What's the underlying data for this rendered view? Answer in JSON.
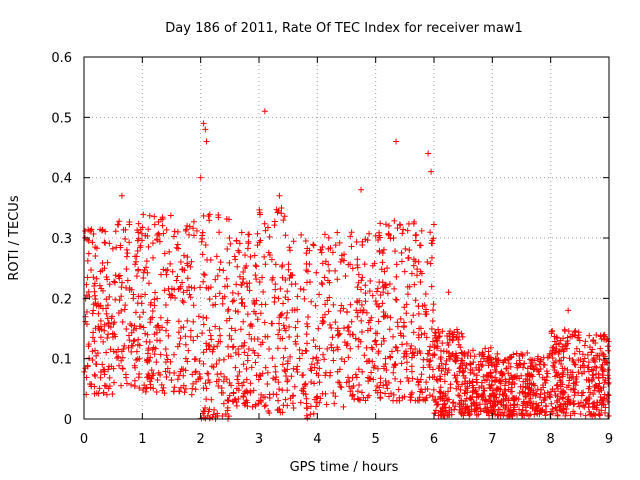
{
  "chart_data": {
    "type": "scatter",
    "title": "Day 186 of 2011, Rate Of TEC Index for receiver maw1",
    "xlabel": "GPS time / hours",
    "ylabel": "ROTI / TECUs",
    "xlim": [
      0,
      9
    ],
    "ylim": [
      0,
      0.6
    ],
    "xticks": [
      "0",
      "1",
      "2",
      "3",
      "4",
      "5",
      "6",
      "7",
      "8",
      "9"
    ],
    "yticks": [
      "0",
      "0.1",
      "0.2",
      "0.3",
      "0.4",
      "0.5",
      "0.6"
    ],
    "grid": true,
    "marker": "+",
    "color": "#ff0000",
    "notable_points": [
      {
        "x": 2.05,
        "y": 0.49
      },
      {
        "x": 2.08,
        "y": 0.48
      },
      {
        "x": 2.1,
        "y": 0.46
      },
      {
        "x": 3.1,
        "y": 0.51
      },
      {
        "x": 5.35,
        "y": 0.46
      },
      {
        "x": 5.9,
        "y": 0.44
      },
      {
        "x": 5.95,
        "y": 0.41
      },
      {
        "x": 2.0,
        "y": 0.4
      },
      {
        "x": 0.65,
        "y": 0.37
      },
      {
        "x": 3.35,
        "y": 0.37
      },
      {
        "x": 4.75,
        "y": 0.38
      },
      {
        "x": 6.25,
        "y": 0.21
      },
      {
        "x": 8.3,
        "y": 0.18
      }
    ],
    "density_segments": [
      {
        "x0": 0.0,
        "x1": 0.5,
        "ymin": 0.04,
        "ymax": 0.32,
        "n": 140
      },
      {
        "x0": 0.5,
        "x1": 1.0,
        "ymin": 0.05,
        "ymax": 0.33,
        "n": 120
      },
      {
        "x0": 1.0,
        "x1": 1.5,
        "ymin": 0.04,
        "ymax": 0.34,
        "n": 130
      },
      {
        "x0": 1.5,
        "x1": 2.0,
        "ymin": 0.04,
        "ymax": 0.33,
        "n": 100
      },
      {
        "x0": 2.0,
        "x1": 2.5,
        "ymin": 0.0,
        "ymax": 0.34,
        "n": 130
      },
      {
        "x0": 2.5,
        "x1": 3.0,
        "ymin": 0.02,
        "ymax": 0.31,
        "n": 130
      },
      {
        "x0": 3.0,
        "x1": 3.5,
        "ymin": 0.01,
        "ymax": 0.35,
        "n": 120
      },
      {
        "x0": 3.5,
        "x1": 4.0,
        "ymin": 0.0,
        "ymax": 0.31,
        "n": 100
      },
      {
        "x0": 4.0,
        "x1": 4.5,
        "ymin": 0.02,
        "ymax": 0.31,
        "n": 90
      },
      {
        "x0": 4.5,
        "x1": 5.0,
        "ymin": 0.03,
        "ymax": 0.31,
        "n": 110
      },
      {
        "x0": 5.0,
        "x1": 5.5,
        "ymin": 0.03,
        "ymax": 0.33,
        "n": 130
      },
      {
        "x0": 5.5,
        "x1": 6.0,
        "ymin": 0.03,
        "ymax": 0.33,
        "n": 130
      },
      {
        "x0": 6.0,
        "x1": 6.5,
        "ymin": 0.005,
        "ymax": 0.15,
        "n": 170
      },
      {
        "x0": 6.5,
        "x1": 7.0,
        "ymin": 0.005,
        "ymax": 0.12,
        "n": 170
      },
      {
        "x0": 7.0,
        "x1": 7.5,
        "ymin": 0.005,
        "ymax": 0.11,
        "n": 160
      },
      {
        "x0": 7.5,
        "x1": 8.0,
        "ymin": 0.005,
        "ymax": 0.11,
        "n": 150
      },
      {
        "x0": 8.0,
        "x1": 8.5,
        "ymin": 0.005,
        "ymax": 0.15,
        "n": 160
      },
      {
        "x0": 8.5,
        "x1": 9.0,
        "ymin": 0.005,
        "ymax": 0.14,
        "n": 160
      }
    ]
  }
}
